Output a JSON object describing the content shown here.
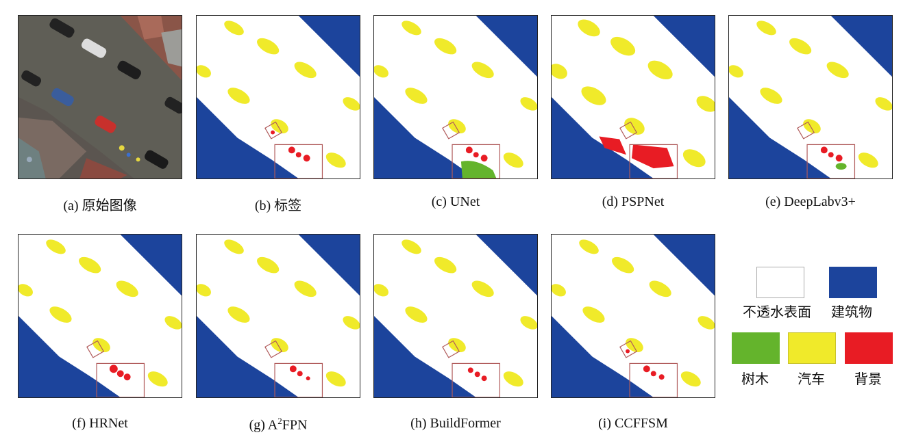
{
  "captions": {
    "a": "(a) 原始图像",
    "b": "(b) 标签",
    "c": "(c) UNet",
    "d": "(d) PSPNet",
    "e": "(e) DeepLabv3+",
    "f": "(f) HRNet",
    "g_prefix": "(g) A",
    "g_sup": "2",
    "g_suffix": "FPN",
    "h": "(h) BuildFormer",
    "i": "(i) CCFFSM"
  },
  "legend": {
    "items": [
      {
        "label": "不透水表面",
        "color": "#ffffff"
      },
      {
        "label": "建筑物",
        "color": "#1c449c"
      },
      {
        "label": "树木",
        "color": "#64b42c"
      },
      {
        "label": "汽车",
        "color": "#f0ea2a"
      },
      {
        "label": "背景",
        "color": "#e81c24"
      }
    ]
  },
  "colors": {
    "impervious": "#ffffff",
    "building": "#1c449c",
    "tree": "#64b42c",
    "car": "#f0ea2a",
    "clutter": "#e81c24",
    "box": "#b05a5a"
  }
}
